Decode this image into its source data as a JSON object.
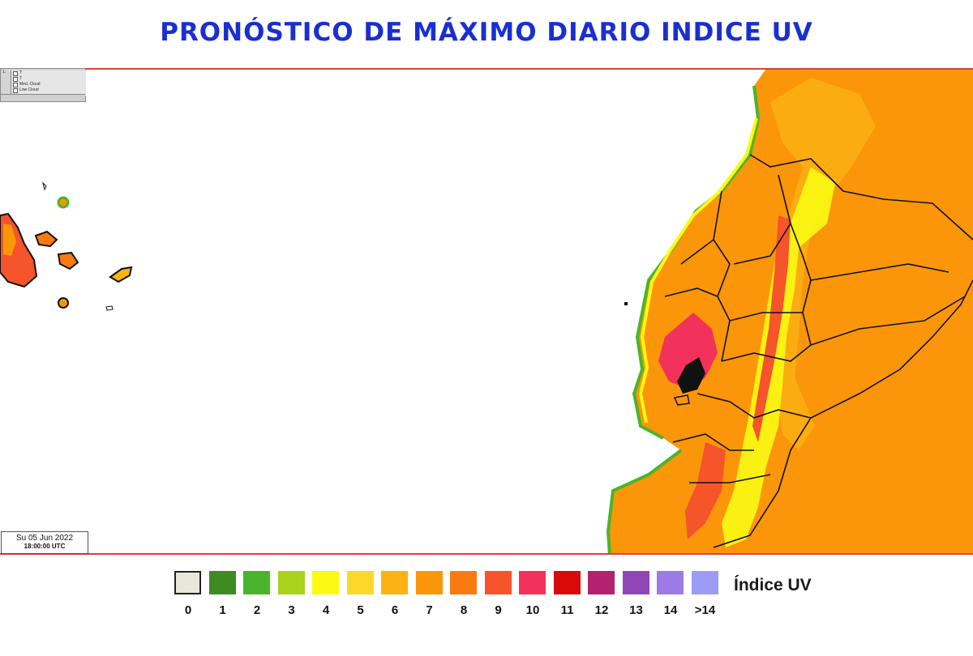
{
  "title": "PRONÓSTICO DE MÁXIMO DIARIO INDICE UV",
  "timestamp": {
    "date": "Su 05 Jun 2022",
    "time": "18:00:00 UTC"
  },
  "layer_panel": {
    "items": [
      "T",
      "T",
      "Med. Cloud",
      "Low Cloud"
    ]
  },
  "legend": {
    "title": "Índice UV",
    "items": [
      {
        "label": "0",
        "color": "#e9e7da"
      },
      {
        "label": "1",
        "color": "#3e8a23"
      },
      {
        "label": "2",
        "color": "#4ab52a"
      },
      {
        "label": "3",
        "color": "#a8d21c"
      },
      {
        "label": "4",
        "color": "#fafa12"
      },
      {
        "label": "5",
        "color": "#fbd82a"
      },
      {
        "label": "6",
        "color": "#fbb314"
      },
      {
        "label": "7",
        "color": "#fb960a"
      },
      {
        "label": "8",
        "color": "#f97a12"
      },
      {
        "label": "9",
        "color": "#f6542a"
      },
      {
        "label": "10",
        "color": "#f2325a"
      },
      {
        "label": "11",
        "color": "#d90a0a"
      },
      {
        "label": "12",
        "color": "#b3226c"
      },
      {
        "label": "13",
        "color": "#9046b6"
      },
      {
        "label": "14",
        "color": "#9a7ce4"
      },
      {
        "label": ">14",
        "color": "#9c9cf6"
      }
    ]
  },
  "map": {
    "ocean_color": "#ffffff",
    "base_land_color": "#fb960a",
    "frame_color": "#d8423a",
    "boundary_color": "#111111"
  }
}
